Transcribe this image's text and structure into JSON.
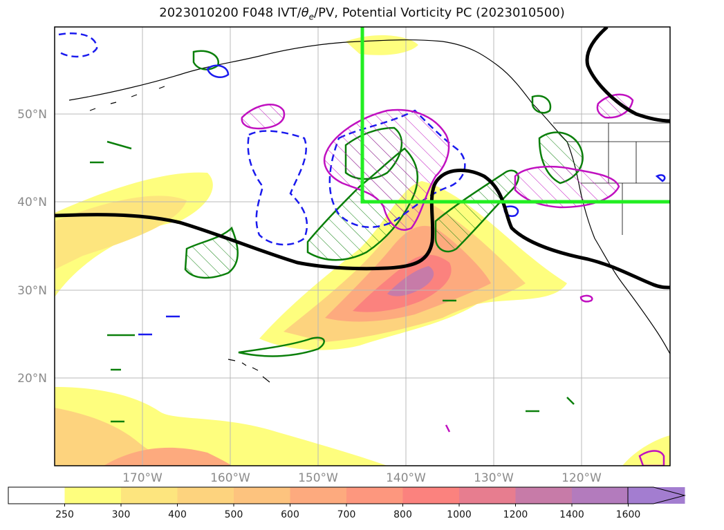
{
  "title": {
    "prefix": "2023010200 F048 IVT/",
    "theta": "θ",
    "theta_sub": "e",
    "suffix": "/PV, Potential Vorticity PC (2023010500)"
  },
  "axes": {
    "lat_labels": [
      "50°N",
      "40°N",
      "30°N",
      "20°N"
    ],
    "lon_labels": [
      "170°W",
      "160°W",
      "150°W",
      "140°W",
      "130°W",
      "120°W"
    ]
  },
  "colorbar": {
    "ticks": [
      "250",
      "300",
      "400",
      "500",
      "600",
      "700",
      "800",
      "1000",
      "1200",
      "1400",
      "1600"
    ],
    "colors": [
      "#ffffff",
      "#fefe7e",
      "#fde57e",
      "#fdd37e",
      "#fdc37e",
      "#fdaa7e",
      "#fd977e",
      "#fb827e",
      "#e77d8f",
      "#c77ba8",
      "#b37bbd",
      "#a37dd0"
    ],
    "extend": "max"
  },
  "legend_colors": {
    "green_contour": "#0a7f0a",
    "magenta_contour": "#c010c0",
    "blue_contour": "#1a1aee",
    "black_contour": "#000000",
    "highlight_box": "#22ee22"
  }
}
